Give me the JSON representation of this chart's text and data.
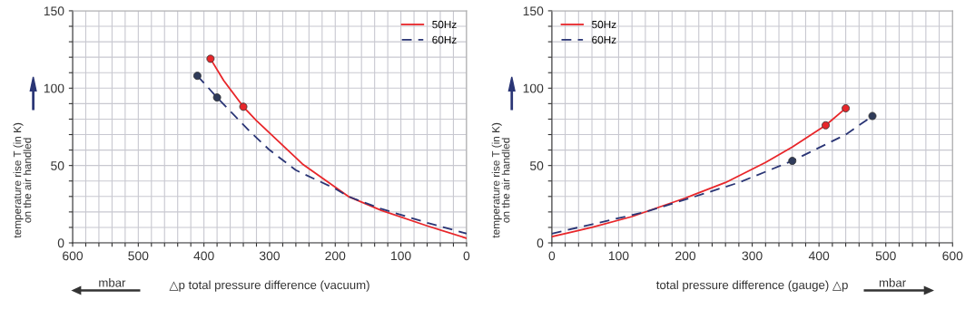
{
  "chart_data": [
    {
      "type": "line",
      "xlabel": "△p total pressure difference (vacuum)",
      "ylabel": "temperature rise T (in K)\non the air handled",
      "annotations": [
        "mbar"
      ],
      "xlim": [
        600,
        0
      ],
      "ylim": [
        0,
        150
      ],
      "xticks": [
        0,
        {
          "value": 20,
          "label": null
        },
        {
          "value": 40,
          "label": null
        },
        {
          "value": 60,
          "label": null
        },
        {
          "value": 80,
          "label": null
        },
        100,
        {
          "value": 120,
          "label": null
        },
        {
          "value": 140,
          "label": null
        },
        {
          "value": 160,
          "label": null
        },
        {
          "value": 180,
          "label": null
        },
        200,
        {
          "value": 220,
          "label": null
        },
        {
          "value": 240,
          "label": null
        },
        {
          "value": 260,
          "label": null
        },
        {
          "value": 280,
          "label": null
        },
        300,
        {
          "value": 320,
          "label": null
        },
        {
          "value": 340,
          "label": null
        },
        {
          "value": 360,
          "label": null
        },
        {
          "value": 380,
          "label": null
        },
        400,
        {
          "value": 420,
          "label": null
        },
        {
          "value": 440,
          "label": null
        },
        {
          "value": 460,
          "label": null
        },
        {
          "value": 480,
          "label": null
        },
        500,
        {
          "value": 520,
          "label": null
        },
        {
          "value": 540,
          "label": null
        },
        {
          "value": 560,
          "label": null
        },
        {
          "value": 580,
          "label": null
        },
        600
      ],
      "yticks": [
        0,
        {
          "value": 10,
          "label": null
        },
        {
          "value": 20,
          "label": null
        },
        {
          "value": 30,
          "label": null
        },
        {
          "value": 40,
          "label": null
        },
        50,
        {
          "value": 60,
          "label": null
        },
        {
          "value": 70,
          "label": null
        },
        {
          "value": 80,
          "label": null
        },
        {
          "value": 90,
          "label": null
        },
        100,
        {
          "value": 110,
          "label": null
        },
        {
          "value": 120,
          "label": null
        },
        {
          "value": 130,
          "label": null
        },
        {
          "value": 140,
          "label": null
        },
        150
      ],
      "grid": true,
      "legend": "top right",
      "series": [
        {
          "name": "50Hz",
          "color": "#e8262a",
          "line_style": "solid",
          "x": [
            390,
            370,
            340,
            320,
            250,
            180,
            130,
            60,
            0
          ],
          "values": [
            119,
            105,
            88,
            79,
            51,
            30,
            21,
            11,
            3
          ]
        },
        {
          "name": "60Hz",
          "color": "#2a3575",
          "line_style": "dashed",
          "x": [
            410,
            380,
            330,
            300,
            260,
            200,
            180,
            130,
            60,
            0
          ],
          "values": [
            108,
            94,
            72,
            60,
            47,
            35,
            30,
            22,
            13,
            6
          ]
        },
        {
          "type": "scatter",
          "color": "#e8262a",
          "marker": "circle",
          "x": [
            390,
            340
          ],
          "values": [
            119,
            88
          ]
        },
        {
          "type": "scatter",
          "color": "#2f3b5a",
          "marker": "circle",
          "x": [
            410,
            380
          ],
          "values": [
            108,
            94
          ]
        }
      ]
    },
    {
      "type": "line",
      "xlabel": "total pressure difference (gauge) △p",
      "ylabel": "temperature rise T (in K)\non the air handled",
      "annotations": [
        "mbar"
      ],
      "xlim": [
        0,
        600
      ],
      "ylim": [
        0,
        150
      ],
      "xticks": [
        0,
        {
          "value": 20,
          "label": null
        },
        {
          "value": 40,
          "label": null
        },
        {
          "value": 60,
          "label": null
        },
        {
          "value": 80,
          "label": null
        },
        100,
        {
          "value": 120,
          "label": null
        },
        {
          "value": 140,
          "label": null
        },
        {
          "value": 160,
          "label": null
        },
        {
          "value": 180,
          "label": null
        },
        200,
        {
          "value": 220,
          "label": null
        },
        {
          "value": 240,
          "label": null
        },
        {
          "value": 260,
          "label": null
        },
        {
          "value": 280,
          "label": null
        },
        300,
        {
          "value": 320,
          "label": null
        },
        {
          "value": 340,
          "label": null
        },
        {
          "value": 360,
          "label": null
        },
        {
          "value": 380,
          "label": null
        },
        400,
        {
          "value": 420,
          "label": null
        },
        {
          "value": 440,
          "label": null
        },
        {
          "value": 460,
          "label": null
        },
        {
          "value": 480,
          "label": null
        },
        500,
        {
          "value": 520,
          "label": null
        },
        {
          "value": 540,
          "label": null
        },
        {
          "value": 560,
          "label": null
        },
        {
          "value": 580,
          "label": null
        },
        600
      ],
      "yticks": [
        0,
        {
          "value": 10,
          "label": null
        },
        {
          "value": 20,
          "label": null
        },
        {
          "value": 30,
          "label": null
        },
        {
          "value": 40,
          "label": null
        },
        50,
        {
          "value": 60,
          "label": null
        },
        {
          "value": 70,
          "label": null
        },
        {
          "value": 80,
          "label": null
        },
        {
          "value": 90,
          "label": null
        },
        100,
        {
          "value": 110,
          "label": null
        },
        {
          "value": 120,
          "label": null
        },
        {
          "value": 130,
          "label": null
        },
        {
          "value": 140,
          "label": null
        },
        150
      ],
      "grid": true,
      "legend": "top left",
      "series": [
        {
          "name": "50Hz",
          "color": "#e8262a",
          "line_style": "solid",
          "x": [
            0,
            60,
            120,
            200,
            260,
            320,
            360,
            410,
            440
          ],
          "values": [
            4,
            10,
            17,
            29,
            39,
            52,
            62,
            76,
            87
          ]
        },
        {
          "name": "60Hz",
          "color": "#2a3575",
          "line_style": "dashed",
          "x": [
            0,
            60,
            140,
            200,
            280,
            360,
            440,
            480
          ],
          "values": [
            6,
            12,
            20,
            28,
            39,
            53,
            70,
            82
          ]
        },
        {
          "type": "scatter",
          "color": "#e8262a",
          "marker": "circle",
          "x": [
            410,
            440
          ],
          "values": [
            76,
            87
          ]
        },
        {
          "type": "scatter",
          "color": "#2f3b5a",
          "marker": "circle",
          "x": [
            360,
            480
          ],
          "values": [
            53,
            82
          ]
        }
      ]
    }
  ]
}
